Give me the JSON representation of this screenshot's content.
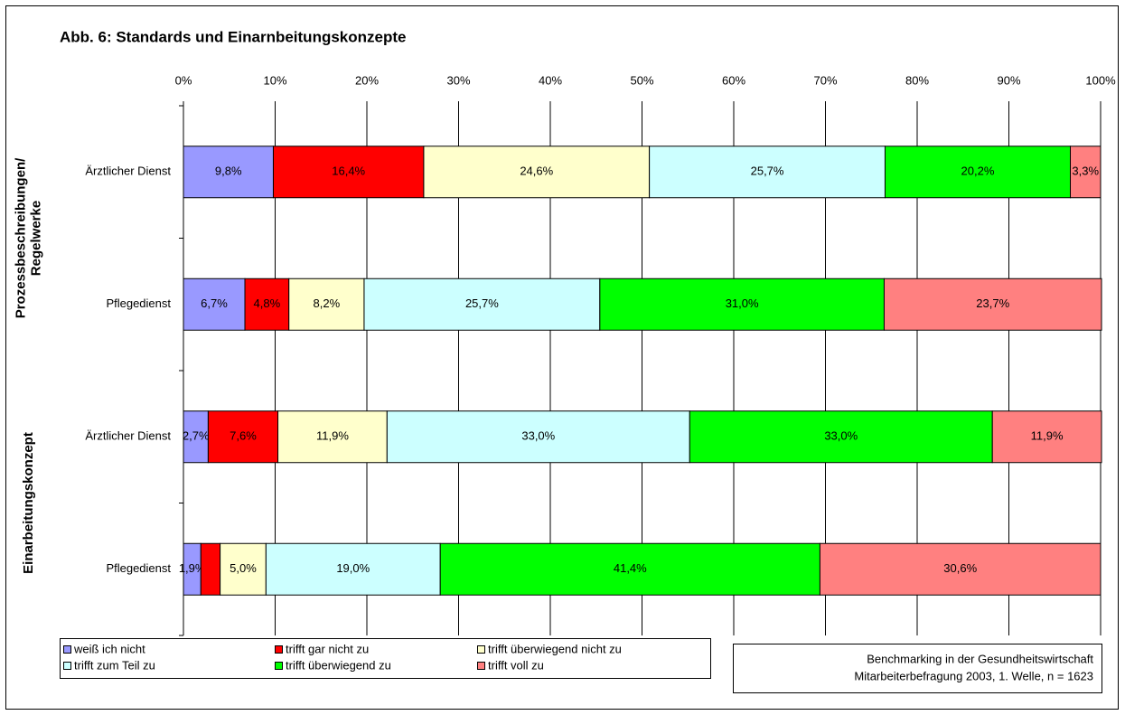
{
  "chart_data": {
    "type": "stacked-barh",
    "title": "Abb. 6: Standards und Einarnbeitungskonzepte",
    "categories": [
      "Ärztlicher Dienst",
      "Pflegedienst",
      "Ärztlicher Dienst",
      "Pflegedienst"
    ],
    "groups": [
      {
        "lines": [
          "Prozessbeschreibungen/",
          "Regelwerke"
        ]
      },
      {
        "lines": [
          "Einarbeitungskonzept"
        ]
      }
    ],
    "xlim": [
      0,
      100
    ],
    "xticks": [
      {
        "value": 0,
        "label": "0%"
      },
      {
        "value": 10,
        "label": "10%"
      },
      {
        "value": 20,
        "label": "20%"
      },
      {
        "value": 30,
        "label": "30%"
      },
      {
        "value": 40,
        "label": "40%"
      },
      {
        "value": 50,
        "label": "50%"
      },
      {
        "value": 60,
        "label": "60%"
      },
      {
        "value": 70,
        "label": "70%"
      },
      {
        "value": 80,
        "label": "80%"
      },
      {
        "value": 90,
        "label": "90%"
      },
      {
        "value": 100,
        "label": "100%"
      }
    ],
    "grid": true,
    "series": [
      {
        "name": "weiß ich nicht",
        "color": "#9999ff",
        "values": [
          9.8,
          6.7,
          2.7,
          1.9
        ],
        "value_labels": [
          "9,8%",
          "6,7%",
          "2,7%",
          "1,9%"
        ]
      },
      {
        "name": "trifft gar nicht zu",
        "color": "#ff0000",
        "values": [
          16.4,
          4.8,
          7.6,
          2.1
        ],
        "value_labels": [
          "16,4%",
          "4,8%",
          "7,6%",
          null
        ]
      },
      {
        "name": "trifft überwiegend nicht zu",
        "color": "#ffffcc",
        "values": [
          24.6,
          8.2,
          11.9,
          5.0
        ],
        "value_labels": [
          "24,6%",
          "8,2%",
          "11,9%",
          "5,0%"
        ]
      },
      {
        "name": "trifft zum Teil zu",
        "color": "#ccffff",
        "values": [
          25.7,
          25.7,
          33.0,
          19.0
        ],
        "value_labels": [
          "25,7%",
          "25,7%",
          "33,0%",
          "19,0%"
        ]
      },
      {
        "name": "trifft überwiegend zu",
        "color": "#00ff00",
        "values": [
          20.2,
          31.0,
          33.0,
          41.4
        ],
        "value_labels": [
          "20,2%",
          "31,0%",
          "33,0%",
          "41,4%"
        ]
      },
      {
        "name": "trifft voll zu",
        "color": "#ff8080",
        "values": [
          3.3,
          23.7,
          11.9,
          30.6
        ],
        "value_labels": [
          "3,3%",
          "23,7%",
          "11,9%",
          "30,6%"
        ]
      }
    ],
    "source": [
      "Benchmarking in der Gesundheitswirtschaft",
      "Mitarbeiterbefragung 2003, 1. Welle, n = 1623"
    ]
  }
}
